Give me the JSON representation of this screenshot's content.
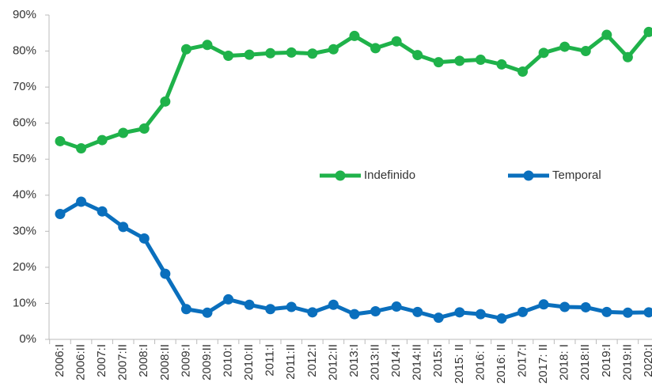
{
  "chart_data": {
    "type": "line",
    "categories": [
      "2006:I",
      "2006:II",
      "2007:I",
      "2007:II",
      "2008:I",
      "2008:II",
      "2009:I",
      "2009:II",
      "2010:I",
      "2010:II",
      "2011:I",
      "2011:II",
      "2012:I",
      "2012:II",
      "2013:I",
      "2013:II",
      "2014:I",
      "2014:II",
      "2015:I",
      "2015: II",
      "2016: I",
      "2016: II",
      "2017:I",
      "2017: II",
      "2018: I",
      "2018:II",
      "2019:I",
      "2019:II",
      "2020:I"
    ],
    "series": [
      {
        "name": "Indefinido",
        "color": "#1fb24a",
        "values": [
          55,
          53,
          55.3,
          57.3,
          58.5,
          66,
          80.5,
          81.7,
          78.7,
          79,
          79.4,
          79.6,
          79.3,
          80.5,
          84.2,
          80.8,
          82.7,
          78.9,
          76.9,
          77.3,
          77.6,
          76.3,
          74.3,
          79.5,
          81.2,
          80,
          84.5,
          78.3,
          85.3
        ]
      },
      {
        "name": "Temporal",
        "color": "#0a6fbd",
        "values": [
          34.8,
          38.2,
          35.5,
          31.2,
          28,
          18.2,
          8.4,
          7.4,
          11.1,
          9.6,
          8.4,
          9,
          7.5,
          9.6,
          7,
          7.8,
          9.1,
          7.6,
          6,
          7.5,
          7,
          5.8,
          7.6,
          9.7,
          9,
          8.9,
          7.6,
          7.4,
          7.5
        ]
      }
    ],
    "ylim": [
      0,
      90
    ],
    "yticks": [
      {
        "value": 0,
        "label": "0%"
      },
      {
        "value": 10,
        "label": "10%"
      },
      {
        "value": 20,
        "label": "20%"
      },
      {
        "value": 30,
        "label": "30%"
      },
      {
        "value": 40,
        "label": "40%"
      },
      {
        "value": 50,
        "label": "50%"
      },
      {
        "value": 60,
        "label": "60%"
      },
      {
        "value": 70,
        "label": "70%"
      },
      {
        "value": 80,
        "label": "80%"
      },
      {
        "value": 90,
        "label": "90%"
      }
    ],
    "grid": false
  }
}
